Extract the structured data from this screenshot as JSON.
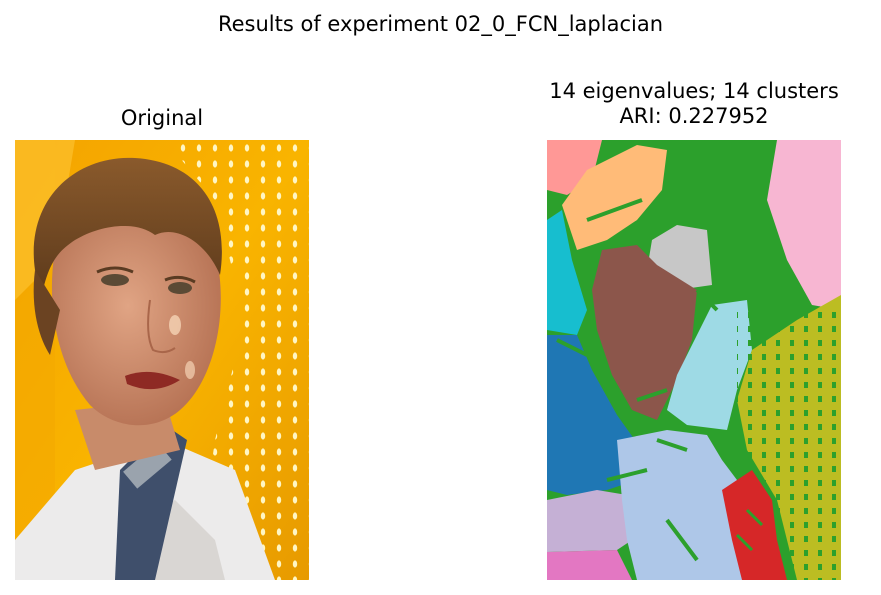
{
  "figure": {
    "suptitle": "Results of experiment 02_0_FCN_laplacian"
  },
  "chart_data": [
    {
      "type": "image",
      "title": "Original"
    },
    {
      "type": "heatmap",
      "title_line1": "14 eigenvalues; 14 clusters",
      "title_line2": "ARI: 0.227952",
      "n_eigenvalues": 14,
      "n_clusters": 14,
      "ari": 0.227952,
      "cluster_colors": [
        "#2ca02c",
        "#ff9896",
        "#ffbb78",
        "#c7c7c7",
        "#17becf",
        "#8c564b",
        "#9edae5",
        "#1f77b4",
        "#bcbd22",
        "#f7b6d2",
        "#c5b0d5",
        "#aec7e8",
        "#d62728",
        "#e377c2"
      ]
    }
  ]
}
